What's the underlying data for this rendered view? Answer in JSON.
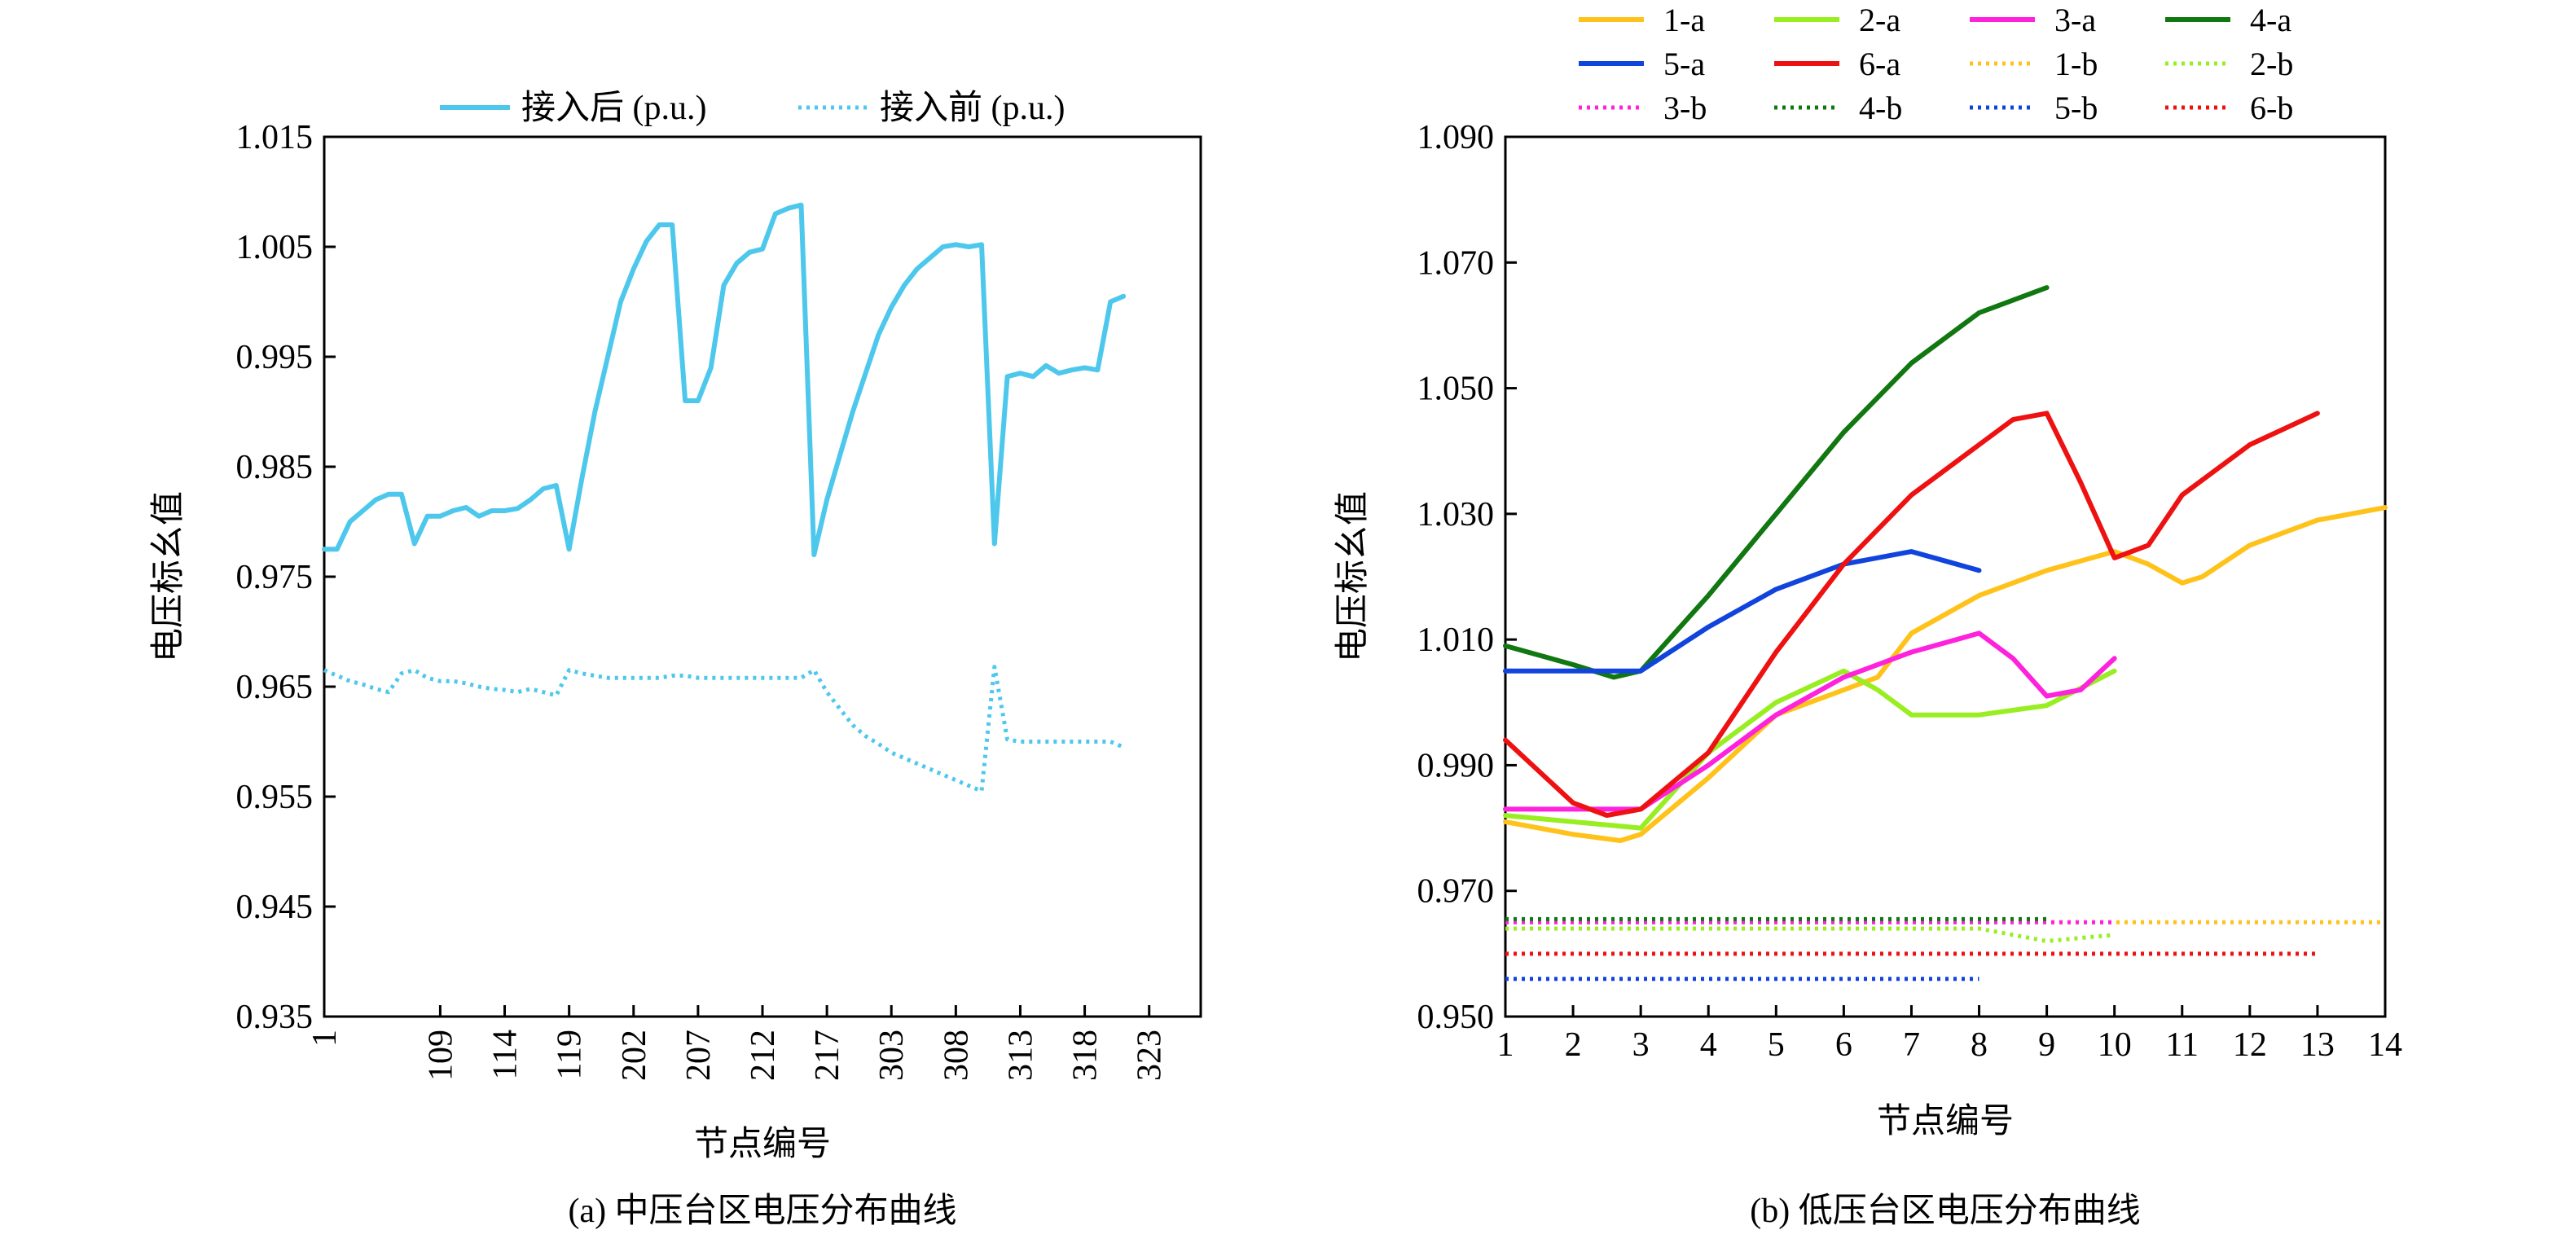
{
  "figure": {
    "caption_a": "(a) 中压台区电压分布曲线",
    "caption_b": "(b) 低压台区电压分布曲线"
  },
  "chart_data": [
    {
      "type": "line",
      "xlabel": "节点编号",
      "ylabel": "电压标幺值",
      "ylim": [
        0.935,
        1.015
      ],
      "yticks": [
        "0.935",
        "0.945",
        "0.955",
        "0.965",
        "0.975",
        "0.985",
        "0.995",
        "1.005",
        "1.015"
      ],
      "xticks": [
        {
          "x": 1,
          "label": "1"
        },
        {
          "x": 10,
          "label": "109"
        },
        {
          "x": 15,
          "label": "114"
        },
        {
          "x": 20,
          "label": "119"
        },
        {
          "x": 25,
          "label": "202"
        },
        {
          "x": 30,
          "label": "207"
        },
        {
          "x": 35,
          "label": "212"
        },
        {
          "x": 40,
          "label": "217"
        },
        {
          "x": 45,
          "label": "303"
        },
        {
          "x": 50,
          "label": "308"
        },
        {
          "x": 55,
          "label": "313"
        },
        {
          "x": 60,
          "label": "318"
        },
        {
          "x": 65,
          "label": "323"
        }
      ],
      "xlim": [
        1,
        69
      ],
      "grid": false,
      "legend": "top",
      "series": [
        {
          "name": "接入后 (p.u.)",
          "color": "#4dc8ec",
          "style": "solid",
          "points": [
            [
              1,
              0.9775
            ],
            [
              2,
              0.9775
            ],
            [
              3,
              0.98
            ],
            [
              4,
              0.981
            ],
            [
              5,
              0.982
            ],
            [
              6,
              0.9825
            ],
            [
              7,
              0.9825
            ],
            [
              8,
              0.978
            ],
            [
              9,
              0.9805
            ],
            [
              10,
              0.9805
            ],
            [
              11,
              0.981
            ],
            [
              12,
              0.9813
            ],
            [
              13,
              0.9805
            ],
            [
              14,
              0.981
            ],
            [
              15,
              0.981
            ],
            [
              16,
              0.9812
            ],
            [
              17,
              0.982
            ],
            [
              18,
              0.983
            ],
            [
              19,
              0.9833
            ],
            [
              20,
              0.9775
            ],
            [
              21,
              0.984
            ],
            [
              22,
              0.99
            ],
            [
              23,
              0.995
            ],
            [
              24,
              1.0
            ],
            [
              25,
              1.003
            ],
            [
              26,
              1.0055
            ],
            [
              27,
              1.007
            ],
            [
              28,
              1.007
            ],
            [
              29,
              0.991
            ],
            [
              30,
              0.991
            ],
            [
              31,
              0.994
            ],
            [
              32,
              1.0015
            ],
            [
              33,
              1.0035
            ],
            [
              34,
              1.0045
            ],
            [
              35,
              1.0048
            ],
            [
              36,
              1.008
            ],
            [
              37,
              1.0085
            ],
            [
              38,
              1.0088
            ],
            [
              39,
              0.977
            ],
            [
              40,
              0.982
            ],
            [
              41,
              0.986
            ],
            [
              42,
              0.99
            ],
            [
              43,
              0.9935
            ],
            [
              44,
              0.997
            ],
            [
              45,
              0.9995
            ],
            [
              46,
              1.0015
            ],
            [
              47,
              1.003
            ],
            [
              48,
              1.004
            ],
            [
              49,
              1.005
            ],
            [
              50,
              1.0052
            ],
            [
              51,
              1.005
            ],
            [
              52,
              1.0052
            ],
            [
              53,
              0.978
            ],
            [
              54,
              0.9932
            ],
            [
              55,
              0.9935
            ],
            [
              56,
              0.9932
            ],
            [
              57,
              0.9942
            ],
            [
              58,
              0.9935
            ],
            [
              59,
              0.9938
            ],
            [
              60,
              0.994
            ],
            [
              61,
              0.9938
            ],
            [
              62,
              1.0
            ],
            [
              63,
              1.0005
            ]
          ]
        },
        {
          "name": "接入前 (p.u.)",
          "color": "#4dc8ec",
          "style": "dotted",
          "points": [
            [
              1,
              0.9665
            ],
            [
              2,
              0.966
            ],
            [
              3,
              0.9655
            ],
            [
              4,
              0.9652
            ],
            [
              5,
              0.9648
            ],
            [
              6,
              0.9645
            ],
            [
              7,
              0.9662
            ],
            [
              8,
              0.9665
            ],
            [
              9,
              0.9658
            ],
            [
              10,
              0.9655
            ],
            [
              11,
              0.9655
            ],
            [
              12,
              0.9653
            ],
            [
              13,
              0.965
            ],
            [
              14,
              0.9648
            ],
            [
              15,
              0.9647
            ],
            [
              16,
              0.9645
            ],
            [
              17,
              0.9648
            ],
            [
              18,
              0.9645
            ],
            [
              19,
              0.9642
            ],
            [
              20,
              0.9665
            ],
            [
              21,
              0.9662
            ],
            [
              22,
              0.966
            ],
            [
              23,
              0.9658
            ],
            [
              24,
              0.9658
            ],
            [
              25,
              0.9658
            ],
            [
              26,
              0.9658
            ],
            [
              27,
              0.9658
            ],
            [
              28,
              0.966
            ],
            [
              29,
              0.966
            ],
            [
              30,
              0.9658
            ],
            [
              31,
              0.9658
            ],
            [
              32,
              0.9658
            ],
            [
              33,
              0.9658
            ],
            [
              34,
              0.9658
            ],
            [
              35,
              0.9658
            ],
            [
              36,
              0.9658
            ],
            [
              37,
              0.9658
            ],
            [
              38,
              0.9658
            ],
            [
              39,
              0.9665
            ],
            [
              40,
              0.9645
            ],
            [
              41,
              0.963
            ],
            [
              42,
              0.9615
            ],
            [
              43,
              0.9605
            ],
            [
              44,
              0.9598
            ],
            [
              45,
              0.959
            ],
            [
              46,
              0.9585
            ],
            [
              47,
              0.958
            ],
            [
              48,
              0.9575
            ],
            [
              49,
              0.957
            ],
            [
              50,
              0.9565
            ],
            [
              51,
              0.956
            ],
            [
              52,
              0.9555
            ],
            [
              53,
              0.9668
            ],
            [
              54,
              0.9602
            ],
            [
              55,
              0.96
            ],
            [
              56,
              0.96
            ],
            [
              57,
              0.96
            ],
            [
              58,
              0.96
            ],
            [
              59,
              0.96
            ],
            [
              60,
              0.96
            ],
            [
              61,
              0.96
            ],
            [
              62,
              0.96
            ],
            [
              63,
              0.9595
            ]
          ]
        }
      ]
    },
    {
      "type": "line",
      "xlabel": "节点编号",
      "ylabel": "电压标幺值",
      "xlim": [
        1,
        14
      ],
      "ylim": [
        0.95,
        1.09
      ],
      "xticks": [
        "1",
        "2",
        "3",
        "4",
        "5",
        "6",
        "7",
        "8",
        "9",
        "10",
        "11",
        "12",
        "13",
        "14"
      ],
      "yticks": [
        "0.950",
        "0.970",
        "0.990",
        "1.010",
        "1.030",
        "1.050",
        "1.070",
        "1.090"
      ],
      "grid": false,
      "legend": "top",
      "series": [
        {
          "name": "1-a",
          "color": "#ffc21a",
          "style": "solid",
          "points": [
            [
              1,
              0.981
            ],
            [
              2,
              0.979
            ],
            [
              2.7,
              0.978
            ],
            [
              3,
              0.979
            ],
            [
              4,
              0.988
            ],
            [
              5,
              0.998
            ],
            [
              6,
              1.002
            ],
            [
              6.5,
              1.004
            ],
            [
              7,
              1.011
            ],
            [
              8,
              1.017
            ],
            [
              9,
              1.021
            ],
            [
              10,
              1.024
            ],
            [
              10.5,
              1.022
            ],
            [
              11,
              1.019
            ],
            [
              11.3,
              1.02
            ],
            [
              12,
              1.025
            ],
            [
              13,
              1.029
            ],
            [
              14,
              1.031
            ]
          ]
        },
        {
          "name": "2-a",
          "color": "#99ee22",
          "style": "solid",
          "points": [
            [
              1,
              0.982
            ],
            [
              2,
              0.981
            ],
            [
              3,
              0.98
            ],
            [
              4,
              0.992
            ],
            [
              5,
              1.0
            ],
            [
              6,
              1.005
            ],
            [
              6.5,
              1.002
            ],
            [
              7,
              0.998
            ],
            [
              8,
              0.998
            ],
            [
              9,
              0.9995
            ],
            [
              10,
              1.005
            ]
          ]
        },
        {
          "name": "3-a",
          "color": "#ff22dd",
          "style": "solid",
          "points": [
            [
              1,
              0.983
            ],
            [
              2,
              0.983
            ],
            [
              3,
              0.983
            ],
            [
              4,
              0.99
            ],
            [
              5,
              0.998
            ],
            [
              6,
              1.004
            ],
            [
              7,
              1.008
            ],
            [
              8,
              1.011
            ],
            [
              8.5,
              1.007
            ],
            [
              9,
              1.001
            ],
            [
              9.5,
              1.002
            ],
            [
              10,
              1.007
            ]
          ]
        },
        {
          "name": "4-a",
          "color": "#117711",
          "style": "solid",
          "points": [
            [
              1,
              1.009
            ],
            [
              2,
              1.006
            ],
            [
              2.6,
              1.004
            ],
            [
              3,
              1.005
            ],
            [
              4,
              1.017
            ],
            [
              5,
              1.03
            ],
            [
              6,
              1.043
            ],
            [
              7,
              1.054
            ],
            [
              8,
              1.062
            ],
            [
              9,
              1.066
            ]
          ]
        },
        {
          "name": "5-a",
          "color": "#1144dd",
          "style": "solid",
          "points": [
            [
              1,
              1.005
            ],
            [
              2,
              1.005
            ],
            [
              3,
              1.005
            ],
            [
              4,
              1.012
            ],
            [
              5,
              1.018
            ],
            [
              6,
              1.022
            ],
            [
              7,
              1.024
            ],
            [
              7.5,
              1.0225
            ],
            [
              8,
              1.021
            ]
          ]
        },
        {
          "name": "6-a",
          "color": "#ee1111",
          "style": "solid",
          "points": [
            [
              1,
              0.994
            ],
            [
              2,
              0.984
            ],
            [
              2.5,
              0.982
            ],
            [
              3,
              0.983
            ],
            [
              4,
              0.992
            ],
            [
              5,
              1.008
            ],
            [
              6,
              1.022
            ],
            [
              7,
              1.033
            ],
            [
              8,
              1.041
            ],
            [
              8.5,
              1.045
            ],
            [
              9,
              1.046
            ],
            [
              9.5,
              1.035
            ],
            [
              10,
              1.023
            ],
            [
              10.5,
              1.025
            ],
            [
              11,
              1.033
            ],
            [
              12,
              1.041
            ],
            [
              13,
              1.046
            ]
          ]
        },
        {
          "name": "1-b",
          "color": "#ffc21a",
          "style": "dotted",
          "points": [
            [
              1,
              0.965
            ],
            [
              5,
              0.965
            ],
            [
              10,
              0.965
            ],
            [
              14,
              0.965
            ]
          ]
        },
        {
          "name": "2-b",
          "color": "#99ee22",
          "style": "dotted",
          "points": [
            [
              1,
              0.964
            ],
            [
              5,
              0.964
            ],
            [
              8,
              0.964
            ],
            [
              9,
              0.962
            ],
            [
              10,
              0.963
            ]
          ]
        },
        {
          "name": "3-b",
          "color": "#ff22dd",
          "style": "dotted",
          "points": [
            [
              1,
              0.965
            ],
            [
              5,
              0.965
            ],
            [
              10,
              0.965
            ]
          ]
        },
        {
          "name": "4-b",
          "color": "#117711",
          "style": "dotted",
          "points": [
            [
              1,
              0.9655
            ],
            [
              5,
              0.9655
            ],
            [
              9,
              0.9655
            ]
          ]
        },
        {
          "name": "5-b",
          "color": "#1144dd",
          "style": "dotted",
          "points": [
            [
              1,
              0.956
            ],
            [
              5,
              0.956
            ],
            [
              8,
              0.956
            ]
          ]
        },
        {
          "name": "6-b",
          "color": "#ee1111",
          "style": "dotted",
          "points": [
            [
              1,
              0.96
            ],
            [
              7,
              0.96
            ],
            [
              13,
              0.96
            ]
          ]
        }
      ]
    }
  ]
}
